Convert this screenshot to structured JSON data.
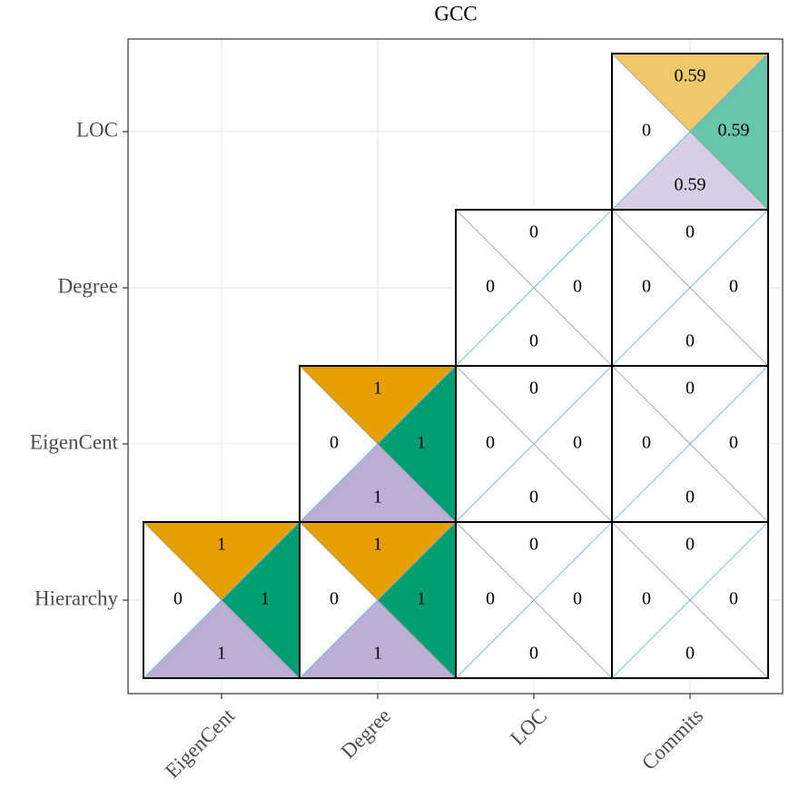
{
  "chart_data": {
    "type": "quad-heatmap",
    "title": "GCC",
    "x_categories": [
      "EigenCent",
      "Degree",
      "LOC",
      "Commits"
    ],
    "y_categories": [
      "Hierarchy",
      "EigenCent",
      "Degree",
      "LOC"
    ],
    "grid": true,
    "quadrants": [
      {
        "position": "top",
        "color": "#e69f00",
        "values": [
          [
            1,
            1,
            0,
            0
          ],
          [
            null,
            1,
            0,
            0
          ],
          [
            null,
            null,
            0,
            0
          ],
          [
            null,
            null,
            null,
            0.59
          ]
        ]
      },
      {
        "position": "right",
        "color": "#009e73",
        "values": [
          [
            1,
            1,
            0,
            0
          ],
          [
            null,
            1,
            0,
            0
          ],
          [
            null,
            null,
            0,
            0
          ],
          [
            null,
            null,
            null,
            0.59
          ]
        ]
      },
      {
        "position": "bottom",
        "color": "#bcaed5",
        "values": [
          [
            1,
            1,
            0,
            0
          ],
          [
            null,
            1,
            0,
            0
          ],
          [
            null,
            null,
            0,
            0
          ],
          [
            null,
            null,
            null,
            0.59
          ]
        ]
      },
      {
        "position": "left",
        "color": "#56b4e9",
        "values": [
          [
            0,
            0,
            0,
            0
          ],
          [
            null,
            0,
            0,
            0
          ],
          [
            null,
            null,
            0,
            0
          ],
          [
            null,
            null,
            null,
            0
          ]
        ]
      }
    ]
  }
}
